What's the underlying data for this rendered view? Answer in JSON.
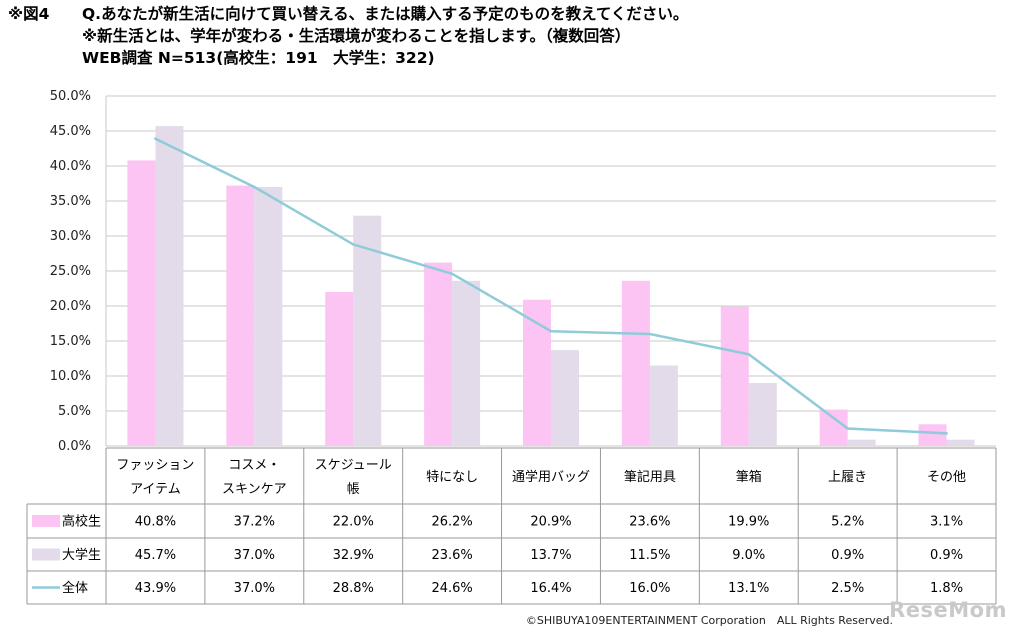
{
  "header": {
    "fig_label": "※図4",
    "question": "Q.あなたが新生活に向けて買い替える、または購入する予定のものを教えてください。",
    "note": "※新生活とは、学年が変わる・生活環境が変わることを指します。（複数回答）",
    "survey": "WEB調査 N=513(高校生：191　大学生：322)"
  },
  "chart_data": {
    "type": "bar",
    "title": "Q.あなたが新生活に向けて買い替える、または購入する予定のものを教えてください。",
    "categories": [
      [
        "ファッション",
        "アイテム"
      ],
      [
        "コスメ・",
        "スキンケア"
      ],
      [
        "スケジュール",
        "帳"
      ],
      [
        "特になし"
      ],
      [
        "通学用バッグ"
      ],
      [
        "筆記用具"
      ],
      [
        "筆箱"
      ],
      [
        "上履き"
      ],
      [
        "その他"
      ]
    ],
    "series": [
      {
        "name": "高校生",
        "kind": "bar",
        "color": "#fbc4f2",
        "values": [
          40.8,
          37.2,
          22.0,
          26.2,
          20.9,
          23.6,
          19.9,
          5.2,
          3.1
        ]
      },
      {
        "name": "大学生",
        "kind": "bar",
        "color": "#e3dbea",
        "values": [
          45.7,
          37.0,
          32.9,
          23.6,
          13.7,
          11.5,
          9.0,
          0.9,
          0.9
        ]
      },
      {
        "name": "全体",
        "kind": "line",
        "color": "#8fcbd8",
        "values": [
          43.9,
          37.0,
          28.8,
          24.6,
          16.4,
          16.0,
          13.1,
          2.5,
          1.8
        ]
      }
    ],
    "ylim": [
      0,
      50
    ],
    "yticks": [
      0,
      5,
      10,
      15,
      20,
      25,
      30,
      35,
      40,
      45,
      50
    ],
    "ytick_format": "percent_1dp",
    "grid": true,
    "legend": "data-table"
  },
  "footer": {
    "copyright": "©SHIBUYA109ENTERTAINMENT Corporation　ALL Rights Reserved.",
    "watermark": "ReseMom"
  }
}
